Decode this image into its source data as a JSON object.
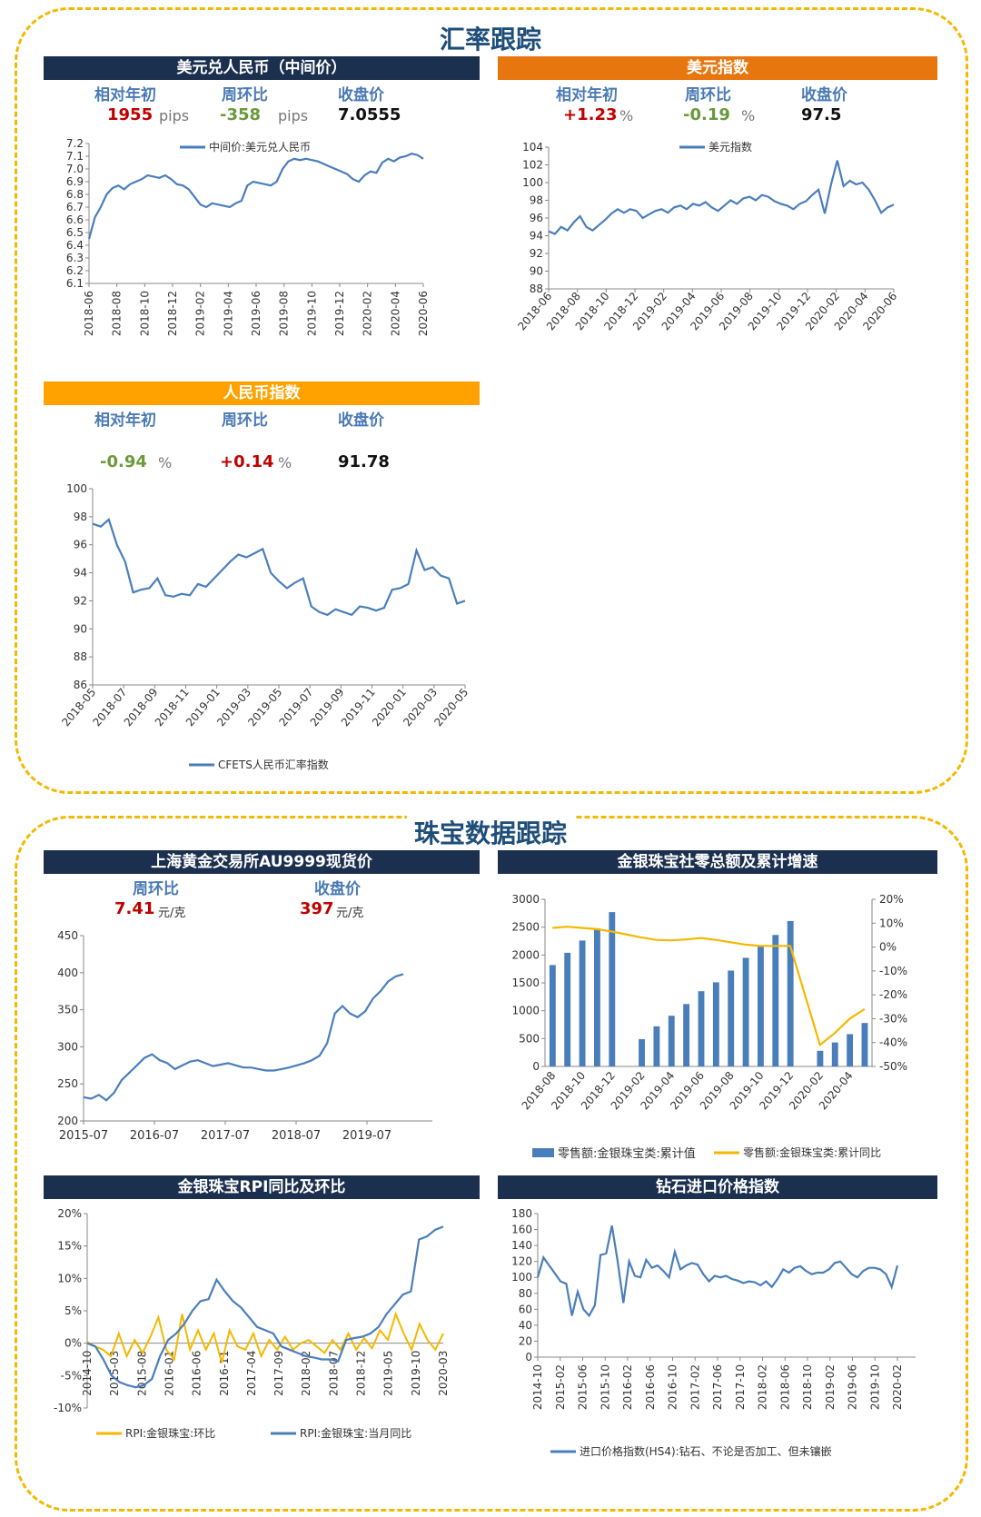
{
  "sections": {
    "fx_title": "汇率跟踪",
    "jewelry_title": "珠宝数据跟踪"
  },
  "usdcny": {
    "header": "美元兑人民币（中间价）",
    "labels": [
      "相对年初",
      "周环比",
      "收盘价"
    ],
    "ytd": "1955",
    "ytd_unit": "pips",
    "wow": "-358",
    "wow_unit": "pips",
    "close": "7.0555"
  },
  "dxy": {
    "header": "美元指数",
    "labels": [
      "相对年初",
      "周环比",
      "收盘价"
    ],
    "ytd": "+1.23",
    "ytd_unit": "%",
    "wow": "-0.19",
    "wow_unit": "%",
    "close": "97.5"
  },
  "cnyindex": {
    "header": "人民币指数",
    "labels": [
      "相对年初",
      "周环比",
      "收盘价"
    ],
    "ytd": "-0.94",
    "ytd_unit": "%",
    "wow": "+0.14",
    "wow_unit": "%",
    "close": "91.78"
  },
  "gold": {
    "header": "上海黄金交易所AU9999现货价",
    "labels": [
      "周环比",
      "收盘价"
    ],
    "wow": "7.41",
    "wow_unit": "元/克",
    "close": "397",
    "close_unit": "元/克"
  },
  "retail": {
    "header": "金银珠宝社零总额及累计增速"
  },
  "rpi": {
    "header": "金银珠宝RPI同比及环比"
  },
  "diamond": {
    "header": "钻石进口价格指数"
  },
  "colors": {
    "navy": "#1b2f4e",
    "orange": "#e8760e",
    "amber": "#ffa200",
    "blue": "#4a7ebb",
    "gold": "#f5b800",
    "section": "#1f4e79"
  },
  "chart_data": [
    {
      "id": "usdcny",
      "type": "line",
      "legend": "中间价:美元兑人民币",
      "legend_position": "top-center",
      "ylim": [
        6.1,
        7.2
      ],
      "yticks": [
        "6.1",
        "6.2",
        "6.3",
        "6.4",
        "6.5",
        "6.6",
        "6.7",
        "6.8",
        "6.9",
        "7.0",
        "7.1",
        "7.2"
      ],
      "xticks": [
        "2018-06",
        "2018-08",
        "2018-10",
        "2018-12",
        "2019-02",
        "2019-04",
        "2019-06",
        "2019-08",
        "2019-10",
        "2019-12",
        "2020-02",
        "2020-04",
        "2020-06"
      ],
      "values": [
        6.45,
        6.62,
        6.7,
        6.8,
        6.85,
        6.87,
        6.84,
        6.88,
        6.9,
        6.92,
        6.95,
        6.94,
        6.93,
        6.95,
        6.92,
        6.88,
        6.87,
        6.84,
        6.78,
        6.72,
        6.7,
        6.73,
        6.72,
        6.71,
        6.7,
        6.73,
        6.75,
        6.87,
        6.9,
        6.89,
        6.88,
        6.87,
        6.9,
        7.0,
        7.06,
        7.08,
        7.07,
        7.08,
        7.07,
        7.06,
        7.04,
        7.02,
        7.0,
        6.98,
        6.96,
        6.92,
        6.9,
        6.95,
        6.98,
        6.97,
        7.05,
        7.08,
        7.06,
        7.09,
        7.1,
        7.12,
        7.11,
        7.08
      ]
    },
    {
      "id": "dxy",
      "type": "line",
      "legend": "美元指数",
      "legend_position": "top-center",
      "ylim": [
        88,
        104
      ],
      "yticks": [
        "88",
        "90",
        "92",
        "94",
        "96",
        "98",
        "100",
        "102",
        "104"
      ],
      "xticks": [
        "2018-06",
        "2018-08",
        "2018-10",
        "2018-12",
        "2019-02",
        "2019-04",
        "2019-06",
        "2019-08",
        "2019-10",
        "2019-12",
        "2020-02",
        "2020-04",
        "2020-06"
      ],
      "values": [
        94.5,
        94.2,
        95.0,
        94.6,
        95.5,
        96.2,
        95.0,
        94.6,
        95.2,
        95.8,
        96.5,
        97.0,
        96.6,
        97.0,
        96.8,
        96.0,
        96.4,
        96.8,
        97.0,
        96.6,
        97.2,
        97.4,
        97.0,
        97.6,
        97.4,
        97.8,
        97.2,
        96.8,
        97.4,
        98.0,
        97.6,
        98.2,
        98.4,
        98.0,
        98.6,
        98.4,
        97.9,
        97.6,
        97.4,
        97.0,
        97.6,
        97.9,
        98.6,
        99.2,
        96.5,
        99.8,
        102.5,
        99.6,
        100.2,
        99.8,
        100.0,
        99.2,
        98.0,
        96.6,
        97.2,
        97.5
      ]
    },
    {
      "id": "cnyindex",
      "type": "line",
      "legend": "CFETS人民币汇率指数",
      "legend_position": "bottom-center",
      "ylim": [
        86,
        100
      ],
      "yticks": [
        "86",
        "88",
        "90",
        "92",
        "94",
        "96",
        "98",
        "100"
      ],
      "xticks": [
        "2018-05",
        "2018-07",
        "2018-09",
        "2018-11",
        "2019-01",
        "2019-03",
        "2019-05",
        "2019-07",
        "2019-09",
        "2019-11",
        "2020-01",
        "2020-03",
        "2020-05"
      ],
      "values": [
        97.5,
        97.3,
        97.8,
        96.0,
        94.8,
        92.6,
        92.8,
        92.9,
        93.6,
        92.4,
        92.3,
        92.5,
        92.4,
        93.2,
        93.0,
        93.6,
        94.2,
        94.8,
        95.3,
        95.1,
        95.4,
        95.7,
        94.0,
        93.4,
        92.9,
        93.3,
        93.6,
        91.6,
        91.2,
        91.0,
        91.4,
        91.2,
        91.0,
        91.6,
        91.5,
        91.3,
        91.5,
        92.8,
        92.9,
        93.2,
        95.6,
        94.2,
        94.4,
        93.8,
        93.6,
        91.8,
        92.0
      ]
    },
    {
      "id": "gold",
      "type": "line",
      "ylim": [
        200,
        450
      ],
      "yticks": [
        "200",
        "250",
        "300",
        "350",
        "400",
        "450"
      ],
      "xticks": [
        "2015-07",
        "2016-07",
        "2017-07",
        "2018-07",
        "2019-07"
      ],
      "values": [
        232,
        230,
        235,
        228,
        238,
        255,
        265,
        275,
        285,
        290,
        282,
        278,
        270,
        275,
        280,
        282,
        278,
        274,
        276,
        278,
        275,
        272,
        272,
        270,
        268,
        268,
        270,
        272,
        275,
        278,
        282,
        288,
        305,
        345,
        355,
        345,
        340,
        348,
        365,
        375,
        388,
        395,
        398
      ]
    },
    {
      "id": "retail",
      "type": "bar",
      "categories": [
        "2018-08",
        "2018-09",
        "2018-10",
        "2018-11",
        "2018-12",
        "2019-01",
        "2019-02",
        "2019-03",
        "2019-04",
        "2019-05",
        "2019-06",
        "2019-07",
        "2019-08",
        "2019-09",
        "2019-10",
        "2019-11",
        "2019-12",
        "2020-01",
        "2020-02",
        "2020-03",
        "2020-04",
        "2020-05"
      ],
      "xticks": [
        "2018-08",
        "2018-10",
        "2018-12",
        "2019-02",
        "2019-04",
        "2019-06",
        "2019-08",
        "2019-10",
        "2019-12",
        "2020-02",
        "2020-04"
      ],
      "ylim_left": [
        0,
        3000
      ],
      "yticks_left": [
        "0",
        "500",
        "1000",
        "1500",
        "2000",
        "2500",
        "3000"
      ],
      "ylim_right": [
        -50,
        20
      ],
      "yticks_right": [
        "-50%",
        "-40%",
        "-30%",
        "-20%",
        "-10%",
        "0%",
        "10%",
        "20%"
      ],
      "series": [
        {
          "name": "零售额:金银珠宝类:累计值",
          "kind": "bar",
          "values": [
            1820,
            2040,
            2260,
            2480,
            2770,
            null,
            490,
            720,
            910,
            1120,
            1350,
            1510,
            1720,
            1950,
            2150,
            2360,
            2610,
            null,
            280,
            430,
            580,
            780
          ]
        },
        {
          "name": "零售额:金银珠宝类:累计同比",
          "kind": "line",
          "values": [
            8.0,
            8.5,
            8.0,
            7.5,
            6.5,
            null,
            4.0,
            3.0,
            2.8,
            3.2,
            3.8,
            3.0,
            2.0,
            1.0,
            0.5,
            0.5,
            0.5,
            null,
            -41,
            -36,
            -30,
            -26
          ]
        }
      ]
    },
    {
      "id": "rpi",
      "type": "line",
      "ylim": [
        -10,
        20
      ],
      "yticks": [
        "-10%",
        "-5%",
        "0%",
        "5%",
        "10%",
        "15%",
        "20%"
      ],
      "xticks": [
        "2014-10",
        "2015-03",
        "2015-08",
        "2016-01",
        "2016-06",
        "2016-11",
        "2017-04",
        "2017-09",
        "2018-02",
        "2018-07",
        "2018-12",
        "2019-05",
        "2019-10",
        "2020-03"
      ],
      "series": [
        {
          "name": "RPI:金银珠宝:环比",
          "values": [
            0.2,
            -0.5,
            -1.0,
            -2.0,
            1.5,
            -2.0,
            0.5,
            -1.5,
            1.0,
            4.0,
            -1.0,
            -2.5,
            4.5,
            -1.0,
            2.0,
            -1.0,
            1.5,
            -3.0,
            2.0,
            -0.5,
            -1.0,
            1.5,
            -2.0,
            0.5,
            -1.0,
            1.0,
            -1.0,
            0.0,
            0.5,
            -0.5,
            -1.5,
            0.5,
            -1.0,
            1.5,
            -1.0,
            0.8,
            -0.8,
            2.0,
            0.5,
            4.5,
            1.5,
            -1.0,
            3.0,
            0.5,
            -1.0,
            1.5
          ]
        },
        {
          "name": "RPI:金银珠宝:当月同比",
          "values": [
            0.0,
            -0.5,
            -2.5,
            -5.0,
            -6.0,
            -6.5,
            -6.8,
            -6.5,
            -5.5,
            -2.0,
            0.5,
            1.5,
            3.0,
            5.0,
            6.5,
            6.8,
            9.8,
            8.0,
            6.5,
            5.5,
            4.0,
            2.5,
            2.0,
            1.5,
            -0.5,
            -1.0,
            -1.5,
            -2.0,
            -2.2,
            -2.5,
            -2.5,
            -2.8,
            0.5,
            0.8,
            1.0,
            1.5,
            2.5,
            4.5,
            6.0,
            7.5,
            8.0,
            16.0,
            16.5,
            17.5,
            18.0
          ]
        }
      ]
    },
    {
      "id": "diamond",
      "type": "line",
      "legend": "进口价格指数(HS4):钻石、不论是否加工、但未镶嵌",
      "legend_position": "bottom-center",
      "ylim": [
        0,
        180
      ],
      "yticks": [
        "0",
        "20",
        "40",
        "60",
        "80",
        "100",
        "120",
        "140",
        "160",
        "180"
      ],
      "xticks": [
        "2014-10",
        "2015-02",
        "2015-06",
        "2015-10",
        "2016-02",
        "2016-06",
        "2016-10",
        "2017-02",
        "2017-06",
        "2017-10",
        "2018-02",
        "2018-06",
        "2018-10",
        "2019-02",
        "2019-06",
        "2019-10",
        "2020-02"
      ],
      "values": [
        100,
        125,
        115,
        105,
        95,
        92,
        52,
        82,
        60,
        52,
        65,
        128,
        130,
        165,
        120,
        68,
        120,
        102,
        100,
        122,
        112,
        115,
        108,
        100,
        132,
        110,
        115,
        118,
        116,
        104,
        95,
        102,
        100,
        102,
        98,
        96,
        93,
        95,
        94,
        90,
        95,
        88,
        98,
        110,
        106,
        112,
        114,
        108,
        104,
        106,
        106,
        110,
        118,
        120,
        112,
        104,
        100,
        108,
        112,
        112,
        110,
        104,
        88,
        115
      ]
    }
  ]
}
